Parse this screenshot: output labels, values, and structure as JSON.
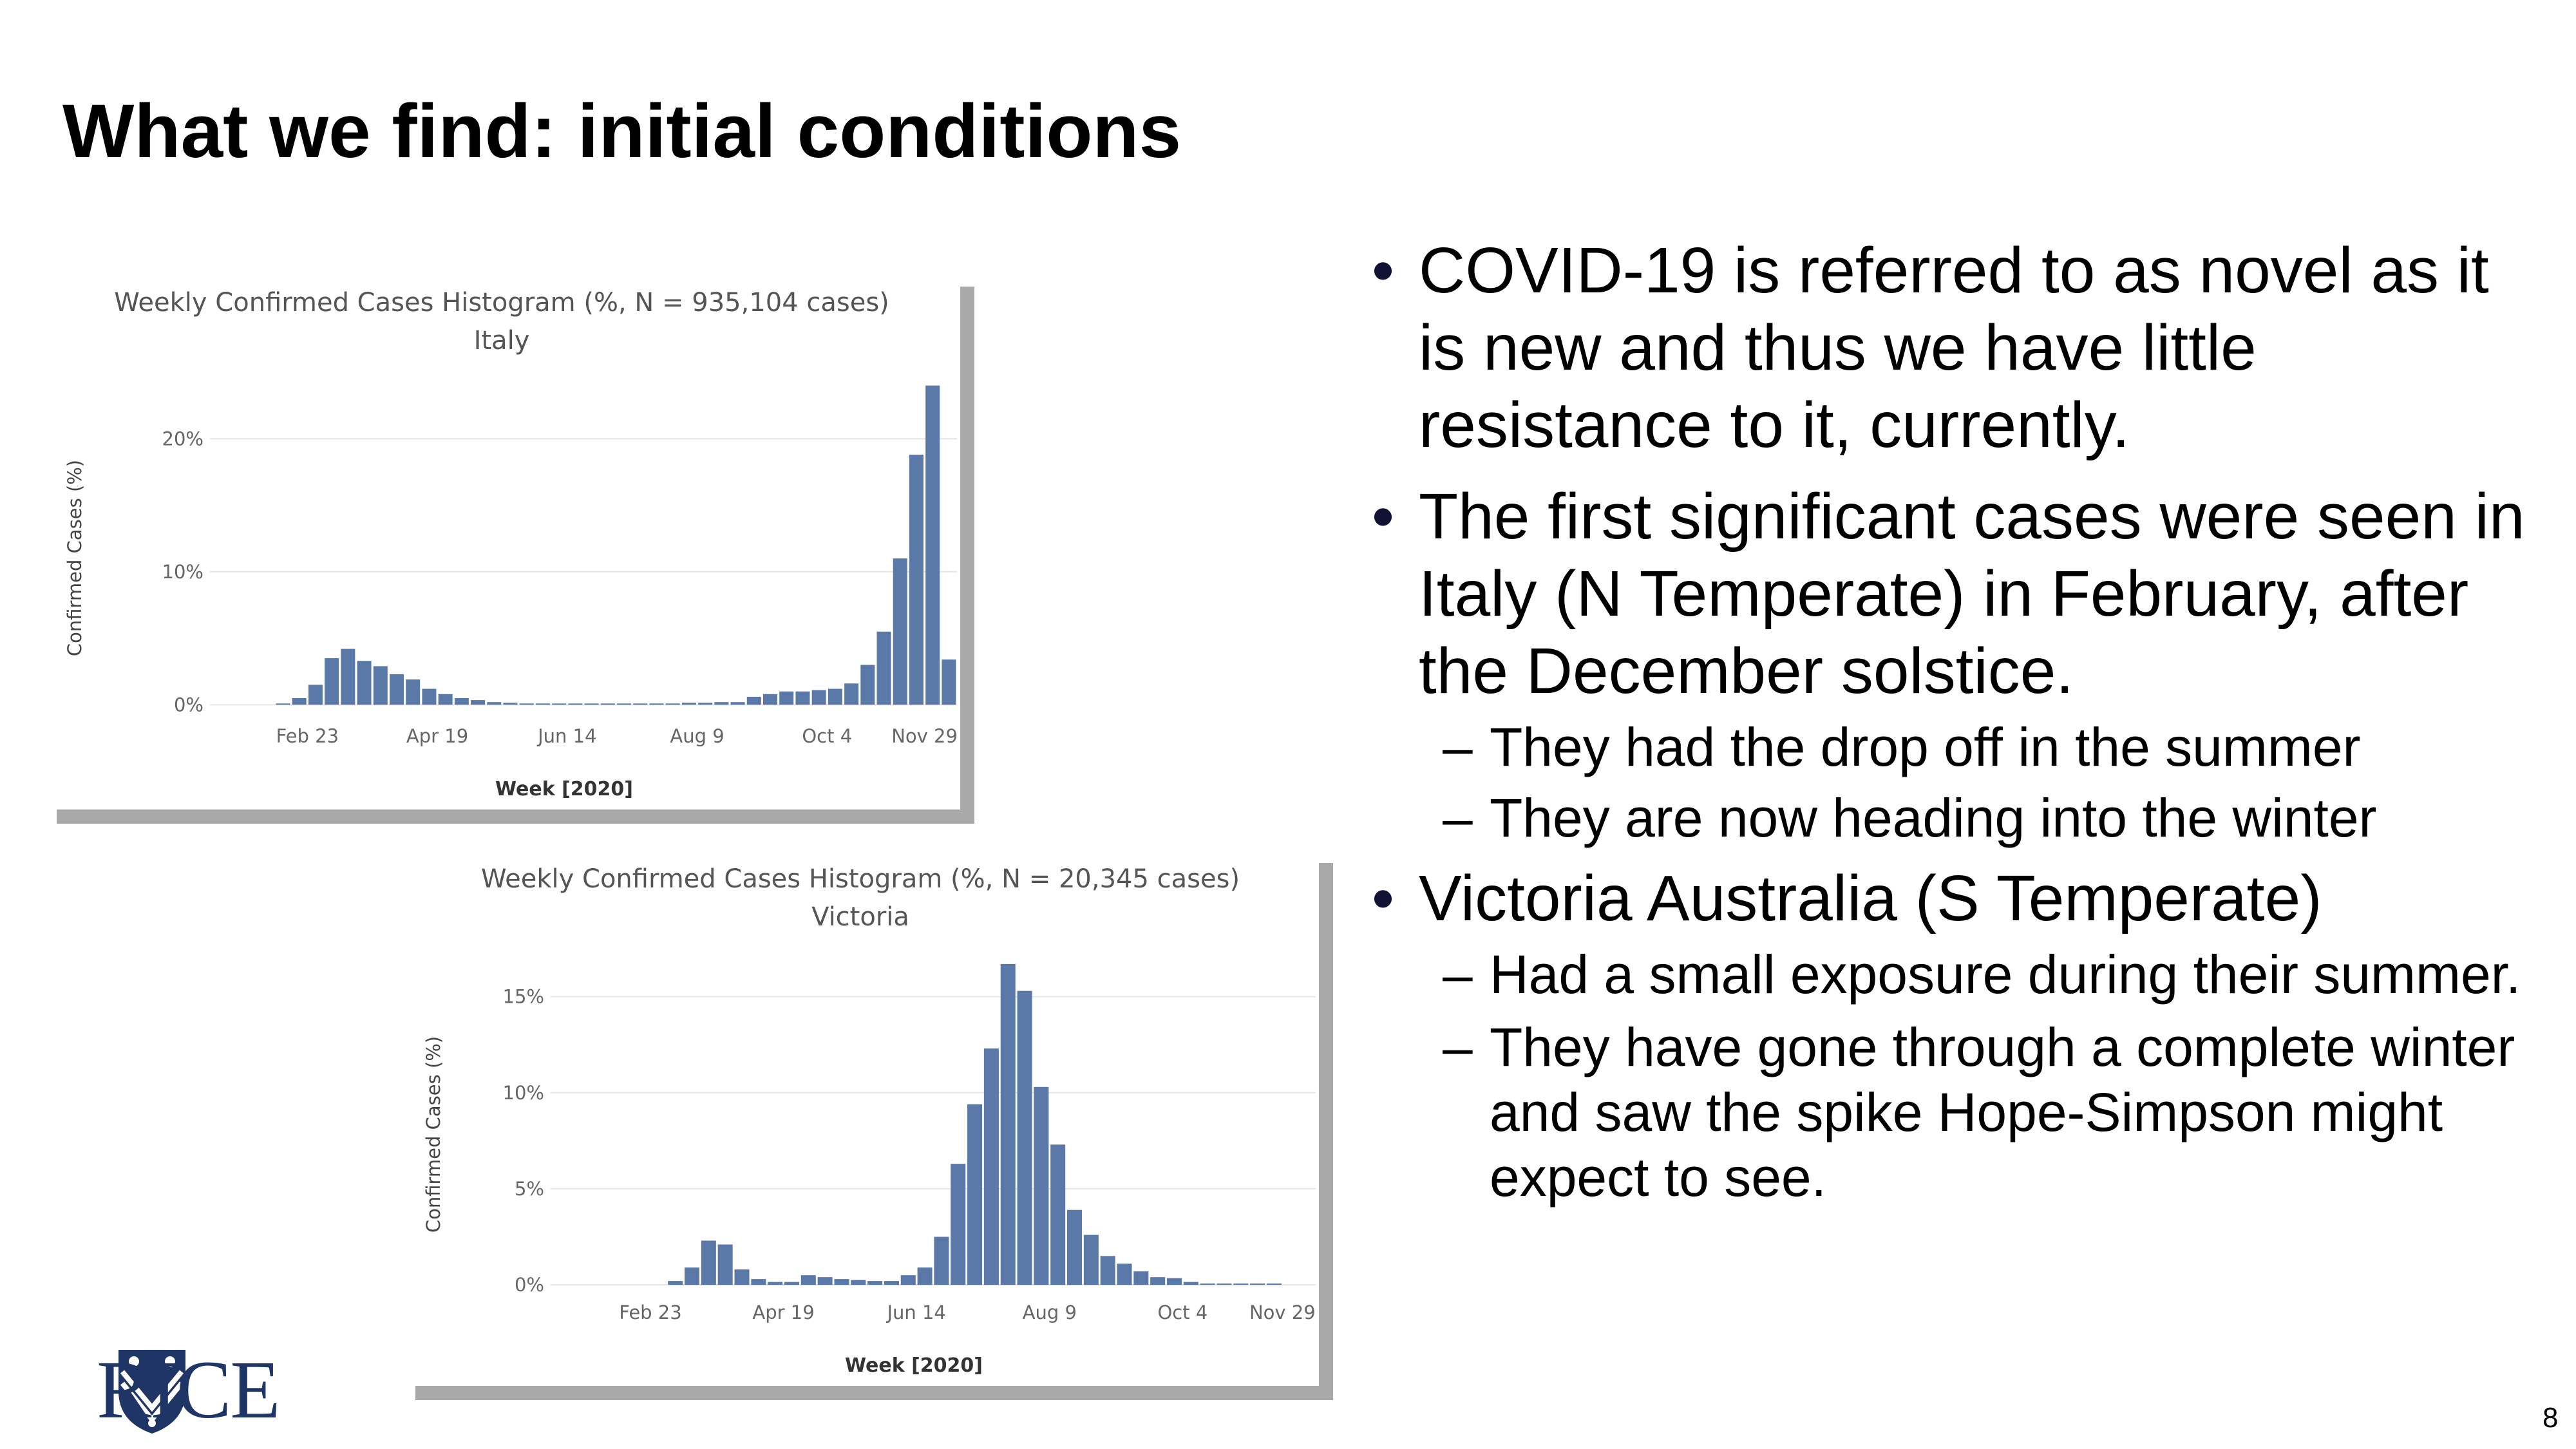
{
  "slide": {
    "title": "What we find: initial conditions",
    "page_number": "8",
    "logo_text": "RICE"
  },
  "bullets": [
    {
      "text": "COVID-19 is referred to as novel as it is new and thus we have little resistance to it, currently.",
      "subs": []
    },
    {
      "text": "The first significant cases were seen in Italy (N Temperate) in February, after the December solstice.",
      "subs": [
        "They had the drop off in the summer",
        "They are now heading into the winter"
      ]
    },
    {
      "text": "Victoria Australia (S Temperate)",
      "subs": [
        "Had a small exposure during their summer.",
        "They have gone through a complete winter and saw the spike Hope-Simpson might expect to see."
      ]
    }
  ],
  "colors": {
    "bar": "#5a78a8",
    "grid": "#e6e6e6",
    "axis_text": "#666666",
    "title_text": "#555555"
  },
  "chart_data": [
    {
      "id": "italy",
      "type": "bar",
      "title": "Weekly Confirmed Cases Histogram (%, N = 935,104 cases)",
      "subtitle": "Italy",
      "xlabel": "Week [2020]",
      "ylabel": "Confirmed Cases (%)",
      "ylim": [
        -1,
        25
      ],
      "yticks": [
        0,
        10,
        20
      ],
      "ytick_labels": [
        "0%",
        "10%",
        "20%"
      ],
      "xtick_labels": [
        "Feb 23",
        "Apr 19",
        "Jun 14",
        "Aug 9",
        "Oct 4",
        "Nov 29"
      ],
      "xtick_positions": [
        6,
        14,
        22,
        30,
        38,
        44
      ],
      "grid": true,
      "values": [
        0,
        0,
        0,
        0,
        0.1,
        0.5,
        1.5,
        3.5,
        4.2,
        3.3,
        2.9,
        2.3,
        1.9,
        1.2,
        0.8,
        0.5,
        0.35,
        0.2,
        0.15,
        0.1,
        0.1,
        0.05,
        0.05,
        0.05,
        0.05,
        0.05,
        0.05,
        0.1,
        0.1,
        0.15,
        0.15,
        0.2,
        0.2,
        0.6,
        0.8,
        1.0,
        1.0,
        1.1,
        1.2,
        1.6,
        3.0,
        5.5,
        11.0,
        18.8,
        24.0,
        3.4
      ]
    },
    {
      "id": "victoria",
      "type": "bar",
      "title": "Weekly Confirmed Cases Histogram (%, N = 20,345 cases)",
      "subtitle": "Victoria",
      "xlabel": "Week [2020]",
      "ylabel": "Confirmed Cases (%)",
      "ylim": [
        -0.5,
        17.5
      ],
      "yticks": [
        0,
        5,
        10,
        15
      ],
      "ytick_labels": [
        "0%",
        "5%",
        "10%",
        "15%"
      ],
      "xtick_labels": [
        "Feb 23",
        "Apr 19",
        "Jun 14",
        "Aug 9",
        "Oct 4",
        "Nov 29"
      ],
      "xtick_positions": [
        6,
        14,
        22,
        30,
        38,
        44
      ],
      "grid": true,
      "values": [
        0,
        0,
        0,
        0,
        0,
        0,
        0,
        0.2,
        0.9,
        2.3,
        2.1,
        0.8,
        0.3,
        0.15,
        0.15,
        0.5,
        0.4,
        0.3,
        0.25,
        0.2,
        0.2,
        0.5,
        0.9,
        2.5,
        6.3,
        9.4,
        12.3,
        16.7,
        15.3,
        10.3,
        7.3,
        3.9,
        2.6,
        1.5,
        1.1,
        0.7,
        0.4,
        0.35,
        0.15,
        0.05,
        0.05,
        0.05,
        0.05,
        0.05,
        0,
        0
      ]
    }
  ]
}
